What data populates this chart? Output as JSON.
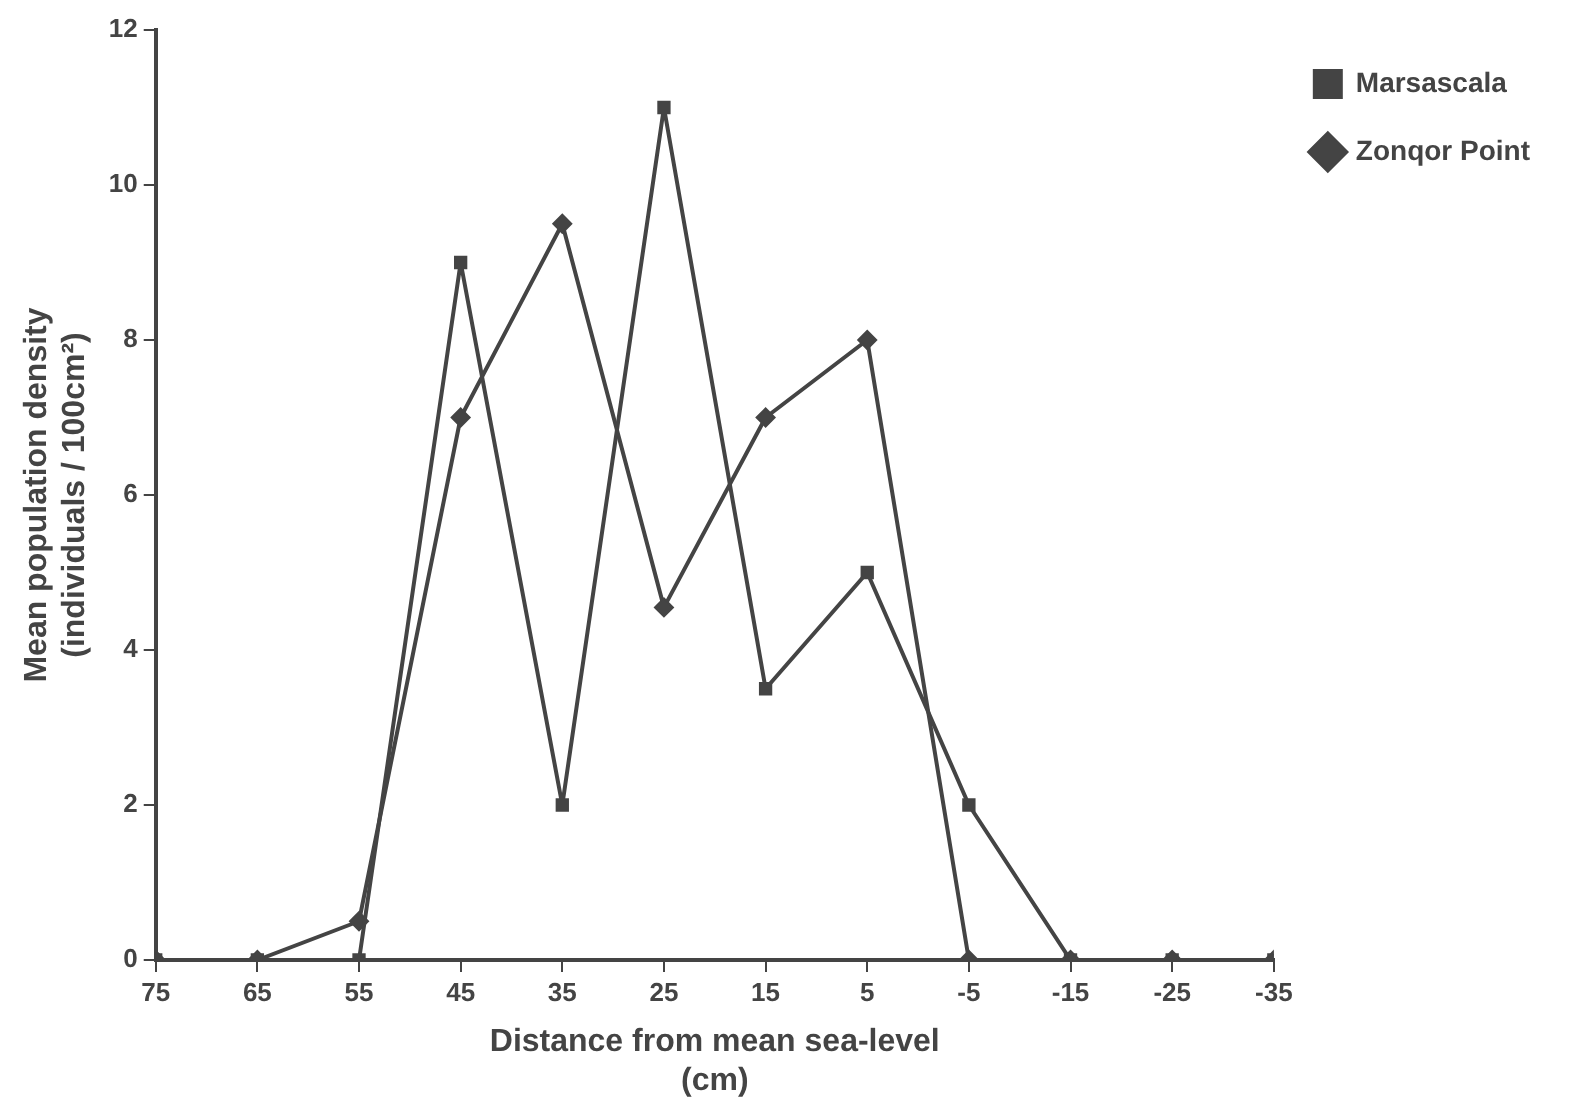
{
  "chart_data": {
    "type": "line",
    "xlabel": "Distance from mean sea-level\n(cm)",
    "ylabel": "Mean population density\n(individuals / 100cm²)",
    "x": [
      75,
      65,
      55,
      45,
      35,
      25,
      15,
      5,
      -5,
      -15,
      -25,
      -35
    ],
    "xlim": [
      75,
      -35
    ],
    "xticks": [
      75,
      65,
      55,
      45,
      35,
      25,
      15,
      5,
      -5,
      -15,
      -25,
      -35
    ],
    "ylim": [
      0,
      12
    ],
    "yticks": [
      0,
      2,
      4,
      6,
      8,
      10,
      12
    ],
    "grid": false,
    "legend": "top right",
    "line_style": "solid",
    "series": [
      {
        "name": "Zonqor Point",
        "color": "#444444",
        "marker": "diamond",
        "values": [
          0,
          0,
          0.5,
          7,
          9.5,
          4.55,
          7,
          8,
          0,
          0,
          0,
          0
        ]
      },
      {
        "name": "Marsascala",
        "color": "#444444",
        "marker": "square",
        "values": [
          0,
          0,
          0,
          9,
          2,
          11,
          3.5,
          5,
          2,
          0,
          0,
          0
        ]
      }
    ]
  }
}
